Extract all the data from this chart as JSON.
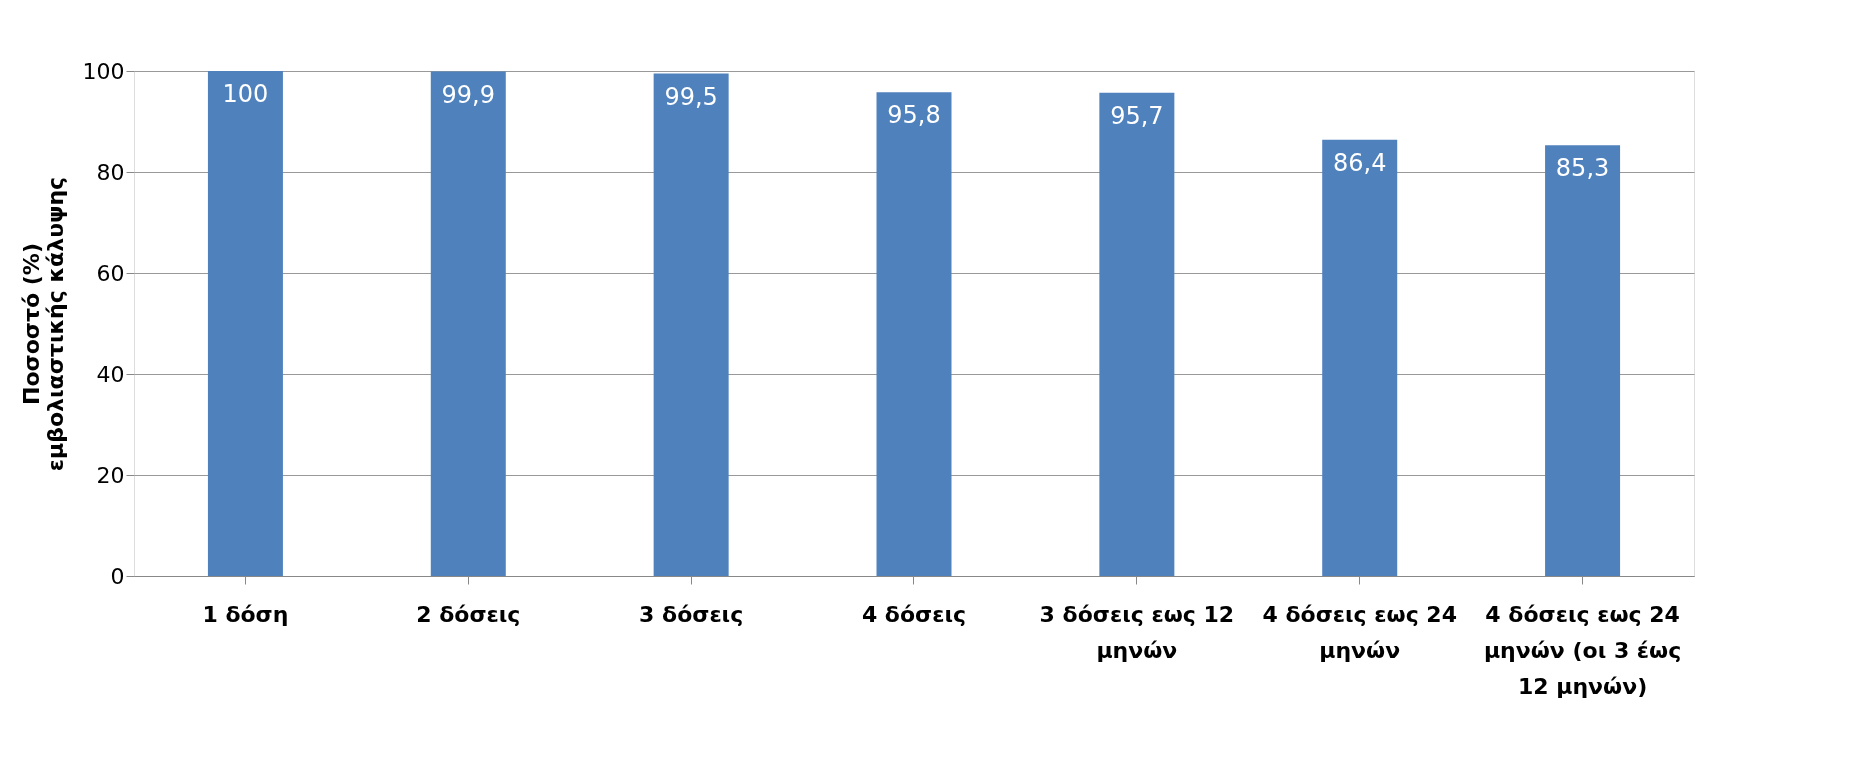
{
  "chart_data": {
    "type": "bar",
    "ylabel": "Ποσοστό (%) εμβολιαστικής κάλυψης",
    "categories": [
      "1 δόση",
      "2 δόσεις",
      "3 δόσεις",
      "4 δόσεις",
      "3 δόσεις εως 12 μηνών",
      "4 δόσεις εως 24 μηνών",
      "4 δόσεις εως 24 μηνών (οι 3 έως 12 μηνών)"
    ],
    "values": [
      100,
      99.9,
      99.5,
      95.8,
      95.7,
      86.4,
      85.3
    ],
    "value_labels": [
      "100",
      "99,9",
      "99,5",
      "95,8",
      "95,7",
      "86,4",
      "85,3"
    ],
    "color": "#4f81bd",
    "ylim": [
      0,
      100
    ],
    "yticks": [
      0,
      20,
      40,
      60,
      80,
      100
    ],
    "grid": "y"
  }
}
